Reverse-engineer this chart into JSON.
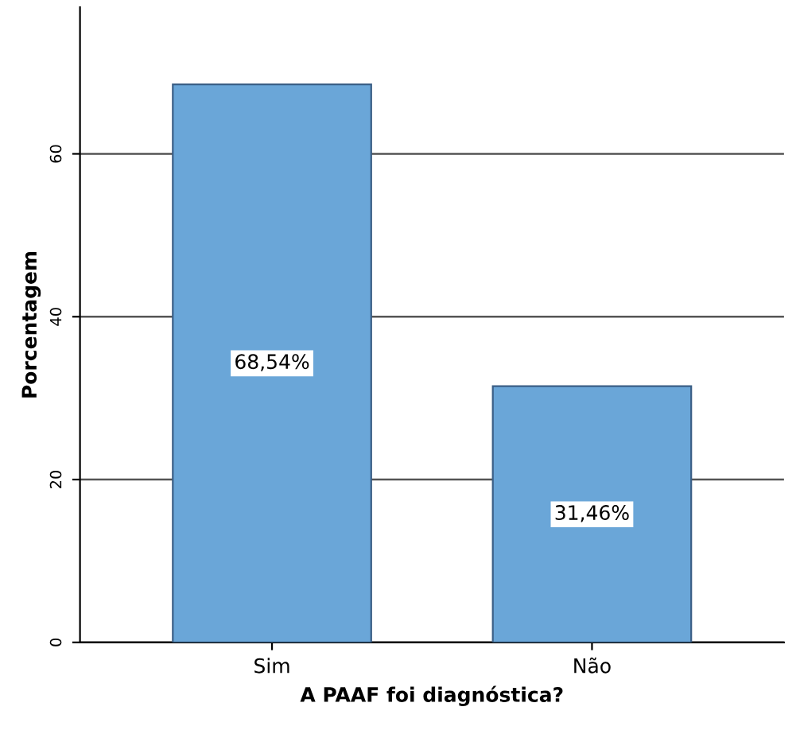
{
  "chart_data": {
    "type": "bar",
    "xlabel": "A PAAF foi diagnóstica?",
    "ylabel": "Porcentagem",
    "categories": [
      "Sim",
      "Não"
    ],
    "values": [
      68.54,
      31.46
    ],
    "value_labels": [
      "68,54%",
      "31,46%"
    ],
    "color": "#6aa6d8",
    "ylim": [
      0,
      78
    ],
    "yticks": [
      0,
      20,
      40,
      60
    ],
    "grid": "y"
  }
}
